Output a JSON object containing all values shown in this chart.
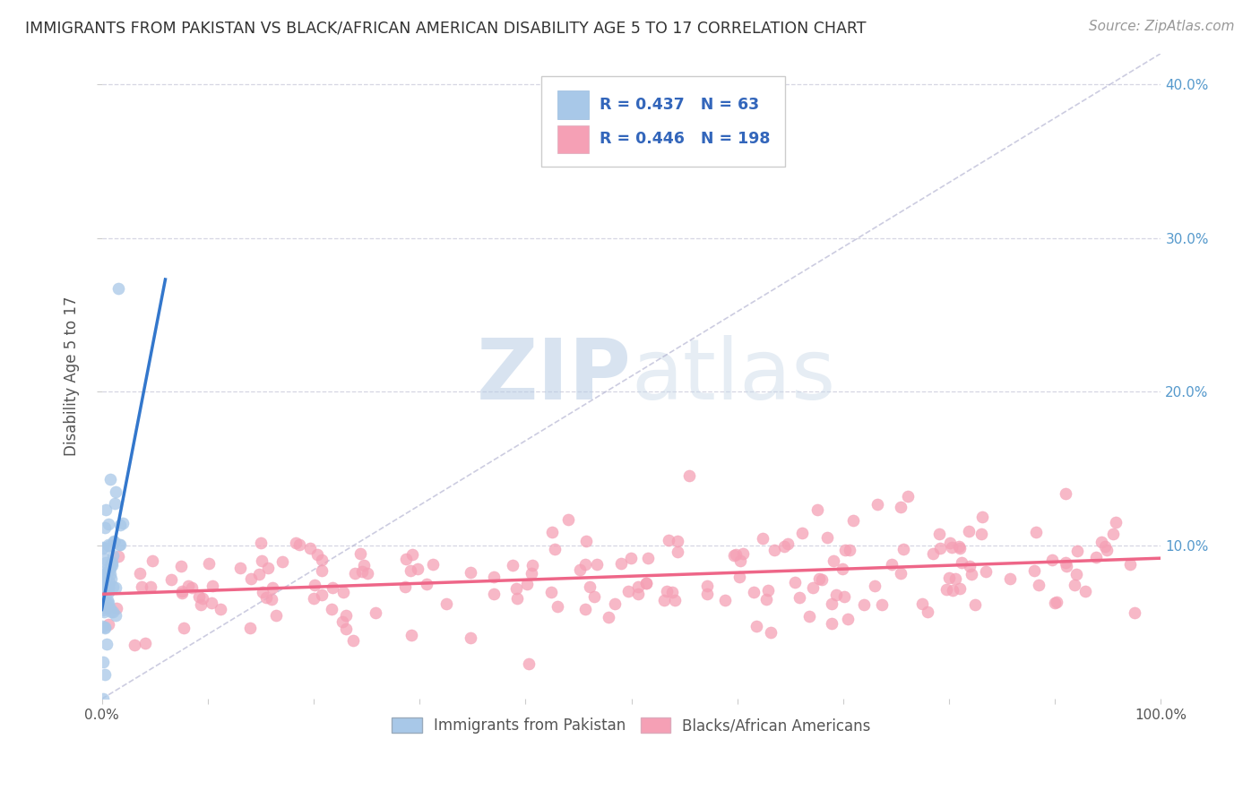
{
  "title": "IMMIGRANTS FROM PAKISTAN VS BLACK/AFRICAN AMERICAN DISABILITY AGE 5 TO 17 CORRELATION CHART",
  "source": "Source: ZipAtlas.com",
  "ylabel": "Disability Age 5 to 17",
  "xlabel": "",
  "legend1_label": "Immigrants from Pakistan",
  "legend2_label": "Blacks/African Americans",
  "R1": 0.437,
  "N1": 63,
  "R2": 0.446,
  "N2": 198,
  "color1": "#a8c8e8",
  "color2": "#f5a0b5",
  "line_color1": "#3377cc",
  "line_color2": "#ee6688",
  "xlim": [
    0.0,
    1.0
  ],
  "ylim": [
    0.0,
    0.42
  ],
  "background_color": "#ffffff",
  "watermark_zip": "ZIP",
  "watermark_atlas": "atlas",
  "seed1": 42,
  "seed2": 99
}
